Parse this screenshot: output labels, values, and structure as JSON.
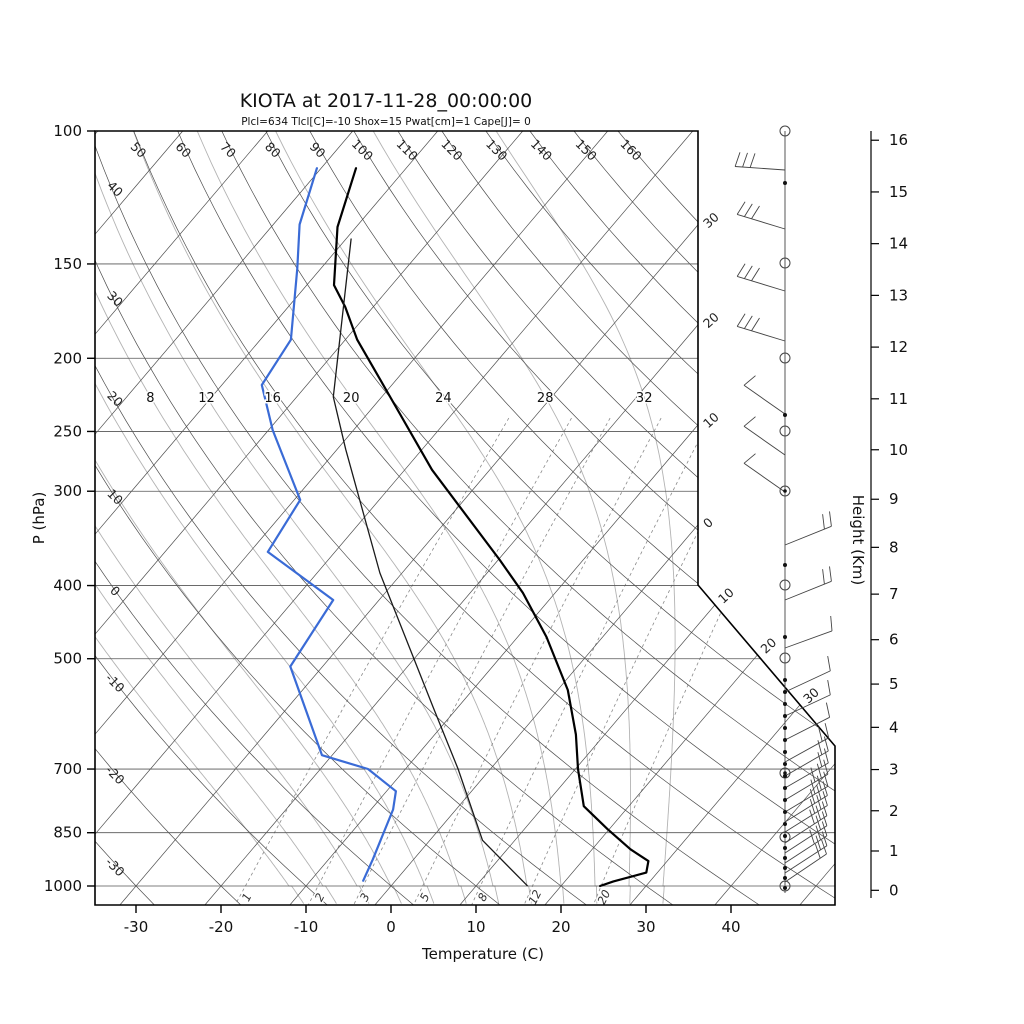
{
  "title": "KIOTA at 2017-11-28_00:00:00",
  "stats_line": "Plcl=634 Tlcl[C]=-10 Shox=15 Pwat[cm]=1 Cape[J]= 0",
  "colors": {
    "temperature_line": "#000000",
    "wetbulb_line": "#1a1a1a",
    "dewpoint_line": "#3a6bd6",
    "stats_text": "#b5502d",
    "grid_dark": "#4d4d4d",
    "isobar": "#555555",
    "moist_adiabat": "#b3b3b3",
    "mixing_ratio": "#8a8a8a",
    "frame": "#000000"
  },
  "axes": {
    "pressure": {
      "label": "P (hPa)",
      "ticks": [
        "100",
        "150",
        "200",
        "250",
        "300",
        "400",
        "500",
        "700",
        "850",
        "1000"
      ]
    },
    "temperature": {
      "label": "Temperature (C)",
      "ticks": [
        "-30",
        "-20",
        "-10",
        "0",
        "10",
        "20",
        "30",
        "40"
      ]
    },
    "height": {
      "label": "Height (Km)",
      "ticks": [
        "0",
        "1",
        "2",
        "3",
        "4",
        "5",
        "6",
        "7",
        "8",
        "9",
        "10",
        "11",
        "12",
        "13",
        "14",
        "15",
        "16"
      ]
    }
  },
  "grid_labels": {
    "dry_adiabats_top": [
      "50",
      "60",
      "70",
      "80",
      "90",
      "100",
      "110",
      "120",
      "130",
      "140",
      "150",
      "160"
    ],
    "dry_adiabats_left": [
      "40",
      "30",
      "20",
      "10",
      "0",
      "-10",
      "-20",
      "-30"
    ],
    "isotherms_right": [
      "30",
      "20",
      "10",
      "0"
    ],
    "isotherms_diagonal": [
      "10",
      "20",
      "30"
    ],
    "moist_adiabats": [
      "8",
      "12",
      "16",
      "20",
      "24",
      "28",
      "32"
    ],
    "mixing_ratio": [
      "1",
      "2",
      "3",
      "5",
      "8",
      "12",
      "20"
    ]
  },
  "chart_data": {
    "type": "line",
    "title": "KIOTA at 2017-11-28_00:00:00",
    "xlabel": "Temperature (C)",
    "ylabel": "P (hPa)",
    "y2label": "Height (Km)",
    "x_range": [
      -35,
      45
    ],
    "pressure_range": [
      100,
      1059
    ],
    "grid": "skew-t log-p",
    "series": [
      {
        "name": "temperature",
        "color": "#000000",
        "width": 2.2,
        "units": {
          "p": "hPa",
          "T": "C"
        },
        "points": [
          [
            112,
            -75.9
          ],
          [
            134,
            -72.2
          ],
          [
            160,
            -66.8
          ],
          [
            171,
            -63.3
          ],
          [
            189,
            -58.6
          ],
          [
            223,
            -49.5
          ],
          [
            281,
            -36.8
          ],
          [
            370,
            -19.8
          ],
          [
            409,
            -13.8
          ],
          [
            468,
            -6.6
          ],
          [
            550,
            1.2
          ],
          [
            630,
            6.6
          ],
          [
            700,
            10.3
          ],
          [
            784,
            14.7
          ],
          [
            841,
            19.8
          ],
          [
            894,
            24.5
          ],
          [
            927,
            27.8
          ],
          [
            960,
            28.7
          ],
          [
            986,
            25.7
          ],
          [
            1000,
            24.6
          ]
        ]
      },
      {
        "name": "wet_bulb",
        "color": "#1a1a1a",
        "width": 1.3,
        "units": {
          "p": "hPa",
          "T": "C"
        },
        "points": [
          [
            139,
            -69.4
          ],
          [
            225,
            -55.7
          ],
          [
            264,
            -49.0
          ],
          [
            385,
            -32.6
          ],
          [
            580,
            -12.9
          ],
          [
            700,
            -3.8
          ],
          [
            870,
            6.2
          ],
          [
            999,
            16.0
          ]
        ]
      },
      {
        "name": "dewpoint",
        "color": "#3a6bd6",
        "width": 2.2,
        "units": {
          "p": "hPa",
          "T": "C"
        },
        "points": [
          [
            112,
            -80.5
          ],
          [
            133,
            -76.9
          ],
          [
            152,
            -72.8
          ],
          [
            189,
            -66.4
          ],
          [
            217,
            -65.3
          ],
          [
            249,
            -59.5
          ],
          [
            308,
            -49.3
          ],
          [
            361,
            -47.9
          ],
          [
            418,
            -35.4
          ],
          [
            512,
            -33.8
          ],
          [
            671,
            -21.2
          ],
          [
            700,
            -14.4
          ],
          [
            749,
            -8.9
          ],
          [
            792,
            -7.4
          ],
          [
            875,
            -5.7
          ],
          [
            922,
            -4.8
          ],
          [
            984,
            -3.8
          ]
        ]
      }
    ],
    "isotherm_step_c": 10,
    "dry_adiabat_values": [
      -40,
      -30,
      -20,
      -10,
      0,
      10,
      20,
      30,
      40,
      50,
      60,
      70,
      80,
      90,
      100,
      110,
      120,
      130,
      140,
      150,
      160
    ],
    "moist_adiabat_values": [
      -12,
      -8,
      -4,
      0,
      4,
      8,
      12,
      16,
      20,
      24,
      28,
      32
    ],
    "mixing_ratio_values": [
      1,
      2,
      3,
      5,
      8,
      12,
      20
    ],
    "wind_barbs": {
      "staff_levels_dots_y": [
        183,
        415,
        565,
        637,
        680,
        692,
        704,
        716,
        728,
        740,
        752,
        764,
        776,
        788,
        800,
        812,
        824,
        836,
        848,
        858,
        868,
        878,
        888
      ],
      "staff_levels_circles_y": [
        131,
        263,
        358,
        431,
        491,
        585,
        658,
        773,
        837,
        886
      ],
      "circles_with_center_dot_y": [
        491,
        773
      ],
      "barbs": [
        {
          "y": 170,
          "ang": 176,
          "n": 3
        },
        {
          "y": 229,
          "ang": 163,
          "n": 3
        },
        {
          "y": 291,
          "ang": 163,
          "n": 3
        },
        {
          "y": 341,
          "ang": 163,
          "n": 3
        },
        {
          "y": 414,
          "ang": 145,
          "n": 1
        },
        {
          "y": 455,
          "ang": 145,
          "n": 1
        },
        {
          "y": 492,
          "ang": 145,
          "n": 1
        },
        {
          "y": 545,
          "ang": 22,
          "n": 2
        },
        {
          "y": 600,
          "ang": 22,
          "n": 2
        },
        {
          "y": 648,
          "ang": 20,
          "n": 1
        },
        {
          "y": 692,
          "ang": 25,
          "n": 1
        },
        {
          "y": 716,
          "ang": 25,
          "n": 1
        },
        {
          "y": 740,
          "ang": 27,
          "n": 1
        },
        {
          "y": 762,
          "ang": 29,
          "n": 2
        },
        {
          "y": 776,
          "ang": 30,
          "n": 2
        },
        {
          "y": 788,
          "ang": 30,
          "n": 2
        },
        {
          "y": 800,
          "ang": 31,
          "n": 3
        },
        {
          "y": 812,
          "ang": 31,
          "n": 3
        },
        {
          "y": 822,
          "ang": 32,
          "n": 3
        },
        {
          "y": 832,
          "ang": 32,
          "n": 3
        },
        {
          "y": 843,
          "ang": 33,
          "n": 3
        },
        {
          "y": 853,
          "ang": 33,
          "n": 2
        },
        {
          "y": 863,
          "ang": 33,
          "n": 3
        },
        {
          "y": 873,
          "ang": 33,
          "n": 2
        },
        {
          "y": 882,
          "ang": 34,
          "n": 2
        }
      ]
    }
  }
}
